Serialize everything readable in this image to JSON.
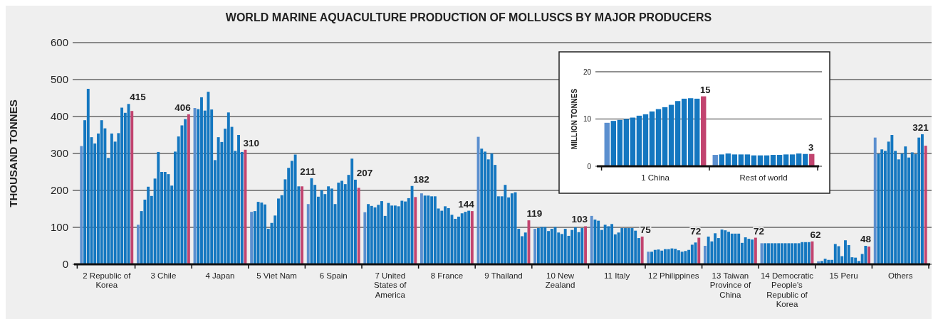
{
  "chart_data": [
    {
      "type": "bar",
      "title": "WORLD MARINE AQUACULTURE PRODUCTION OF MOLLUSCS BY MAJOR PRODUCERS",
      "ylabel": "THOUSAND TONNES",
      "categories": [
        "2 Republic of Korea",
        "3 Chile",
        "4 Japan",
        "5 Viet Nam",
        "6 Spain",
        "7 United States of America",
        "8 France",
        "9 Thailand",
        "10 New Zealand",
        "11 Italy",
        "12 Philippines",
        "13 Taiwan Province of China",
        "14 Democratic People's Republic of Korea",
        "15 Peru",
        "Others"
      ],
      "ylim": [
        0,
        600
      ],
      "yticks": [
        0,
        100,
        200,
        300,
        400,
        500,
        600
      ],
      "grid": true,
      "series": [
        {
          "color": "#5b8fcf",
          "values": [
            320,
            107,
            423,
            142,
            163,
            141,
            192,
            345,
            96,
            131,
            34,
            50,
            57,
            8,
            343
          ]
        },
        {
          "color": "#1477c0",
          "values": [
            390,
            144,
            420,
            144,
            233,
            163,
            186,
            313,
            98,
            121,
            34,
            75,
            57,
            9,
            299
          ]
        },
        {
          "color": "#1477c0",
          "values": [
            475,
            175,
            452,
            169,
            215,
            158,
            186,
            305,
            101,
            118,
            39,
            62,
            57,
            15,
            311
          ]
        },
        {
          "color": "#1477c0",
          "values": [
            344,
            210,
            416,
            167,
            183,
            154,
            184,
            284,
            101,
            93,
            40,
            84,
            57,
            12,
            307
          ]
        },
        {
          "color": "#1477c0",
          "values": [
            327,
            185,
            467,
            162,
            201,
            161,
            184,
            300,
            90,
            107,
            37,
            71,
            57,
            12,
            332
          ]
        },
        {
          "color": "#1477c0",
          "values": [
            354,
            232,
            419,
            96,
            190,
            171,
            151,
            269,
            96,
            103,
            41,
            94,
            57,
            55,
            350
          ]
        },
        {
          "color": "#1477c0",
          "values": [
            390,
            304,
            282,
            112,
            211,
            131,
            145,
            184,
            101,
            109,
            41,
            92,
            57,
            49,
            307
          ]
        },
        {
          "color": "#1477c0",
          "values": [
            368,
            250,
            344,
            132,
            205,
            166,
            157,
            184,
            86,
            81,
            43,
            88,
            57,
            22,
            284
          ]
        },
        {
          "color": "#1477c0",
          "values": [
            288,
            250,
            331,
            178,
            163,
            159,
            152,
            215,
            82,
            86,
            42,
            83,
            57,
            65,
            300
          ]
        },
        {
          "color": "#1477c0",
          "values": [
            354,
            244,
            367,
            187,
            221,
            159,
            134,
            181,
            96,
            98,
            38,
            83,
            57,
            52,
            319
          ]
        },
        {
          "color": "#1477c0",
          "values": [
            332,
            213,
            411,
            230,
            226,
            157,
            123,
            192,
            77,
            98,
            34,
            83,
            57,
            19,
            289
          ]
        },
        {
          "color": "#1477c0",
          "values": [
            355,
            305,
            372,
            261,
            217,
            172,
            129,
            195,
            93,
            98,
            36,
            58,
            57,
            18,
            303
          ]
        },
        {
          "color": "#1477c0",
          "values": [
            424,
            346,
            307,
            280,
            242,
            170,
            138,
            96,
            100,
            98,
            39,
            73,
            60,
            9,
            298
          ]
        },
        {
          "color": "#1477c0",
          "values": [
            410,
            376,
            350,
            297,
            286,
            179,
            142,
            76,
            87,
            91,
            53,
            69,
            60,
            28,
            343
          ]
        },
        {
          "color": "#1477c0",
          "values": [
            434,
            393,
            304,
            211,
            229,
            212,
            145,
            86,
            98,
            71,
            59,
            67,
            60,
            50,
            352
          ]
        },
        {
          "color": "#c2446f",
          "values": [
            415,
            406,
            310,
            211,
            207,
            182,
            144,
            119,
            103,
            75,
            72,
            72,
            62,
            48,
            321
          ],
          "value_labels": [
            "415",
            "406",
            "310",
            "211",
            "207",
            "182",
            "144",
            "119",
            "103",
            "75",
            "72",
            "72",
            "62",
            "48",
            "321"
          ]
        }
      ]
    },
    {
      "type": "bar",
      "ylabel": "MILLION TONNES",
      "categories": [
        "1 China",
        "Rest of world"
      ],
      "ylim": [
        0,
        20
      ],
      "yticks": [
        0,
        10,
        20
      ],
      "grid": true,
      "series": [
        {
          "color": "#5b8fcf",
          "values": [
            9.2,
            2.4
          ]
        },
        {
          "color": "#1477c0",
          "values": [
            9.6,
            2.5
          ]
        },
        {
          "color": "#1477c0",
          "values": [
            9.8,
            2.7
          ]
        },
        {
          "color": "#1477c0",
          "values": [
            10.0,
            2.5
          ]
        },
        {
          "color": "#1477c0",
          "values": [
            10.3,
            2.5
          ]
        },
        {
          "color": "#1477c0",
          "values": [
            10.7,
            2.5
          ]
        },
        {
          "color": "#1477c0",
          "values": [
            11.0,
            2.3
          ]
        },
        {
          "color": "#1477c0",
          "values": [
            11.6,
            2.3
          ]
        },
        {
          "color": "#1477c0",
          "values": [
            12.1,
            2.3
          ]
        },
        {
          "color": "#1477c0",
          "values": [
            12.5,
            2.4
          ]
        },
        {
          "color": "#1477c0",
          "values": [
            13.0,
            2.4
          ]
        },
        {
          "color": "#1477c0",
          "values": [
            13.8,
            2.5
          ]
        },
        {
          "color": "#1477c0",
          "values": [
            14.3,
            2.5
          ]
        },
        {
          "color": "#1477c0",
          "values": [
            14.4,
            2.7
          ]
        },
        {
          "color": "#1477c0",
          "values": [
            14.3,
            2.6
          ]
        },
        {
          "color": "#c2446f",
          "values": [
            14.8,
            2.6
          ],
          "value_labels": [
            "15",
            "3"
          ]
        }
      ]
    }
  ]
}
